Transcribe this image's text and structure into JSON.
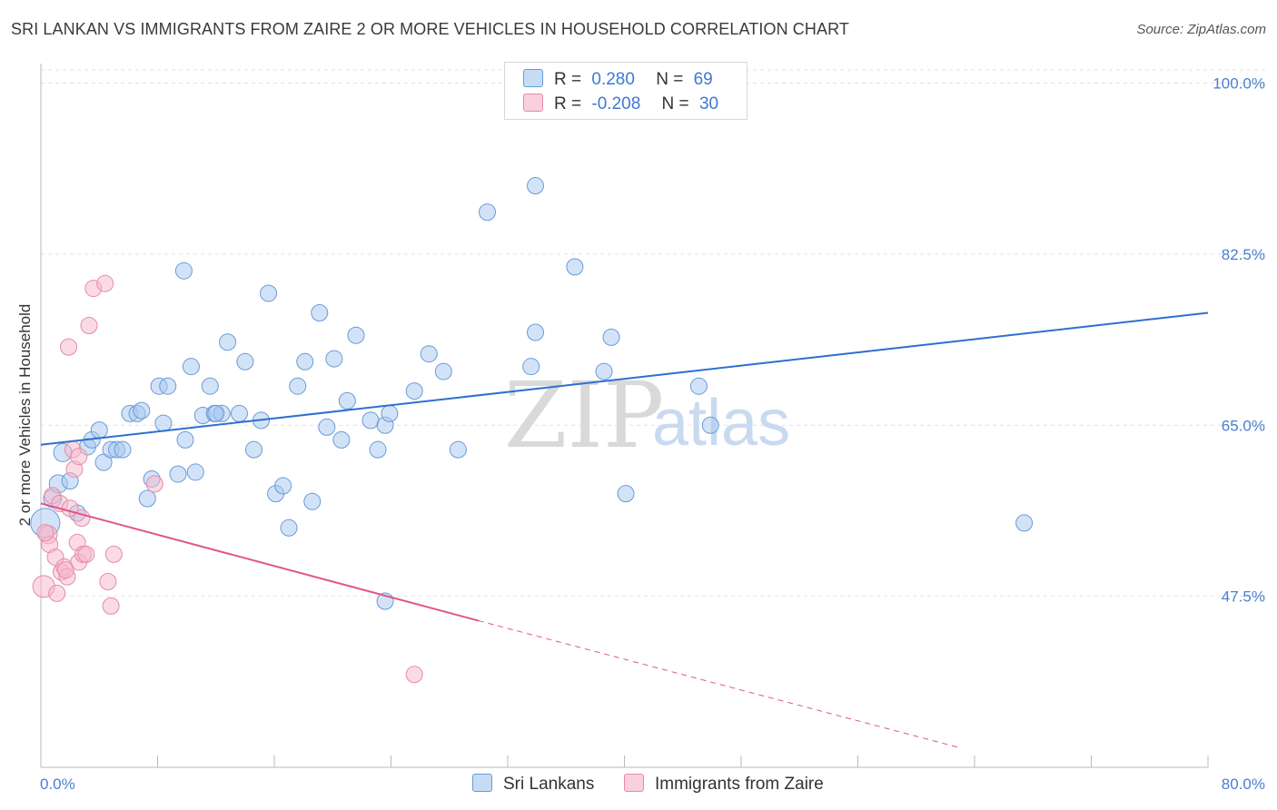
{
  "title": "SRI LANKAN VS IMMIGRANTS FROM ZAIRE 2 OR MORE VEHICLES IN HOUSEHOLD CORRELATION CHART",
  "source": "Source: ZipAtlas.com",
  "watermark": {
    "zip": "ZIP",
    "atlas": "atlas"
  },
  "legend_stats": [
    {
      "r_label": "R =",
      "r_value": "0.280",
      "n_label": "N =",
      "n_value": "69",
      "color": "#a8c8f0"
    },
    {
      "r_label": "R =",
      "r_value": "-0.208",
      "n_label": "N =",
      "n_value": "30",
      "color": "#f5b8cc"
    }
  ],
  "bottom_legend": [
    {
      "label": "Sri Lankans",
      "color": "#a8c8f0"
    },
    {
      "label": "Immigrants from Zaire",
      "color": "#f5b8cc"
    }
  ],
  "chart_data": {
    "type": "scatter",
    "title": "SRI LANKAN VS IMMIGRANTS FROM ZAIRE 2 OR MORE VEHICLES IN HOUSEHOLD CORRELATION CHART",
    "xlabel": "",
    "ylabel": "2 or more Vehicles in Household",
    "xlim": [
      0,
      80
    ],
    "ylim": [
      30,
      102
    ],
    "x_tick_labels": [
      "0.0%",
      "80.0%"
    ],
    "y_ticks": [
      47.5,
      65.0,
      82.5,
      100.0
    ],
    "y_tick_labels": [
      "47.5%",
      "65.0%",
      "82.5%",
      "100.0%"
    ],
    "series": [
      {
        "name": "Sri Lankans",
        "color": "#a8c8f0",
        "stroke": "#6a9ad8",
        "trend": {
          "x0": 0,
          "y0": 63.0,
          "x1": 80,
          "y1": 76.5,
          "color": "#2f6fd0"
        },
        "points": [
          [
            0.3,
            55.0,
            16
          ],
          [
            0.8,
            57.5,
            10
          ],
          [
            1.2,
            59.0,
            10
          ],
          [
            1.5,
            62.2,
            10
          ],
          [
            2.0,
            59.3,
            9
          ],
          [
            2.5,
            56.0,
            9
          ],
          [
            3.2,
            62.8,
            9
          ],
          [
            3.5,
            63.5,
            9
          ],
          [
            4.0,
            64.5,
            9
          ],
          [
            4.3,
            61.2,
            9
          ],
          [
            4.8,
            62.5,
            9
          ],
          [
            5.2,
            62.5,
            9
          ],
          [
            5.6,
            62.5,
            9
          ],
          [
            6.1,
            66.2,
            9
          ],
          [
            6.6,
            66.2,
            9
          ],
          [
            6.9,
            66.5,
            9
          ],
          [
            7.3,
            57.5,
            9
          ],
          [
            7.6,
            59.5,
            9
          ],
          [
            8.1,
            69.0,
            9
          ],
          [
            8.4,
            65.2,
            9
          ],
          [
            8.7,
            69.0,
            9
          ],
          [
            9.4,
            60.0,
            9
          ],
          [
            9.9,
            63.5,
            9
          ],
          [
            10.3,
            71.0,
            9
          ],
          [
            10.6,
            60.2,
            9
          ],
          [
            11.1,
            66.0,
            9
          ],
          [
            11.6,
            69.0,
            9
          ],
          [
            11.9,
            66.2,
            9
          ],
          [
            12.4,
            66.2,
            9
          ],
          [
            12.8,
            73.5,
            9
          ],
          [
            13.6,
            66.2,
            9
          ],
          [
            14.0,
            71.5,
            9
          ],
          [
            14.6,
            62.5,
            9
          ],
          [
            15.1,
            65.5,
            9
          ],
          [
            15.6,
            78.5,
            9
          ],
          [
            16.1,
            58.0,
            9
          ],
          [
            16.6,
            58.8,
            9
          ],
          [
            17.0,
            54.5,
            9
          ],
          [
            17.6,
            69.0,
            9
          ],
          [
            18.1,
            71.5,
            9
          ],
          [
            18.6,
            57.2,
            9
          ],
          [
            19.1,
            76.5,
            9
          ],
          [
            19.6,
            64.8,
            9
          ],
          [
            20.1,
            71.8,
            9
          ],
          [
            20.6,
            63.5,
            9
          ],
          [
            21.0,
            67.5,
            9
          ],
          [
            21.6,
            74.2,
            9
          ],
          [
            22.6,
            65.5,
            9
          ],
          [
            23.1,
            62.5,
            9
          ],
          [
            23.6,
            65.0,
            9
          ],
          [
            23.9,
            66.2,
            9
          ],
          [
            25.6,
            68.5,
            9
          ],
          [
            26.6,
            72.3,
            9
          ],
          [
            27.6,
            70.5,
            9
          ],
          [
            28.6,
            62.5,
            9
          ],
          [
            30.6,
            86.8,
            9
          ],
          [
            33.6,
            71.0,
            9
          ],
          [
            33.9,
            74.5,
            9
          ],
          [
            33.9,
            89.5,
            9
          ],
          [
            36.6,
            81.2,
            9
          ],
          [
            38.6,
            70.5,
            9
          ],
          [
            39.1,
            74.0,
            9
          ],
          [
            40.1,
            58.0,
            9
          ],
          [
            45.1,
            69.0,
            9
          ],
          [
            45.9,
            65.0,
            9
          ],
          [
            67.4,
            55.0,
            9
          ],
          [
            23.6,
            47.0,
            9
          ],
          [
            9.8,
            80.8,
            9
          ],
          [
            12.0,
            66.2,
            9
          ]
        ]
      },
      {
        "name": "Immigrants from Zaire",
        "color": "#f5b8cc",
        "stroke": "#e88aa8",
        "trend": {
          "x0": 0,
          "y0": 57.0,
          "x1": 30,
          "y1": 45.0,
          "color": "#e0558a",
          "dash_to": [
            63,
            32.0
          ]
        },
        "points": [
          [
            0.2,
            48.5,
            12
          ],
          [
            0.5,
            53.8,
            10
          ],
          [
            0.6,
            52.8,
            9
          ],
          [
            0.8,
            57.8,
            9
          ],
          [
            1.0,
            51.5,
            9
          ],
          [
            1.1,
            47.8,
            9
          ],
          [
            1.3,
            57.0,
            9
          ],
          [
            1.4,
            50.0,
            9
          ],
          [
            1.6,
            50.5,
            9
          ],
          [
            1.8,
            49.5,
            9
          ],
          [
            1.9,
            73.0,
            9
          ],
          [
            2.0,
            56.5,
            9
          ],
          [
            2.2,
            62.5,
            9
          ],
          [
            2.3,
            60.5,
            9
          ],
          [
            2.5,
            53.0,
            9
          ],
          [
            2.6,
            51.0,
            9
          ],
          [
            2.8,
            55.5,
            9
          ],
          [
            2.9,
            51.8,
            9
          ],
          [
            3.1,
            51.8,
            9
          ],
          [
            3.3,
            75.2,
            9
          ],
          [
            3.6,
            79.0,
            9
          ],
          [
            4.4,
            79.5,
            9
          ],
          [
            4.6,
            49.0,
            9
          ],
          [
            4.8,
            46.5,
            9
          ],
          [
            5.0,
            51.8,
            9
          ],
          [
            7.8,
            59.0,
            9
          ],
          [
            25.6,
            39.5,
            9
          ],
          [
            0.3,
            54.0,
            9
          ],
          [
            2.6,
            61.8,
            9
          ],
          [
            1.7,
            50.2,
            9
          ]
        ]
      }
    ]
  }
}
